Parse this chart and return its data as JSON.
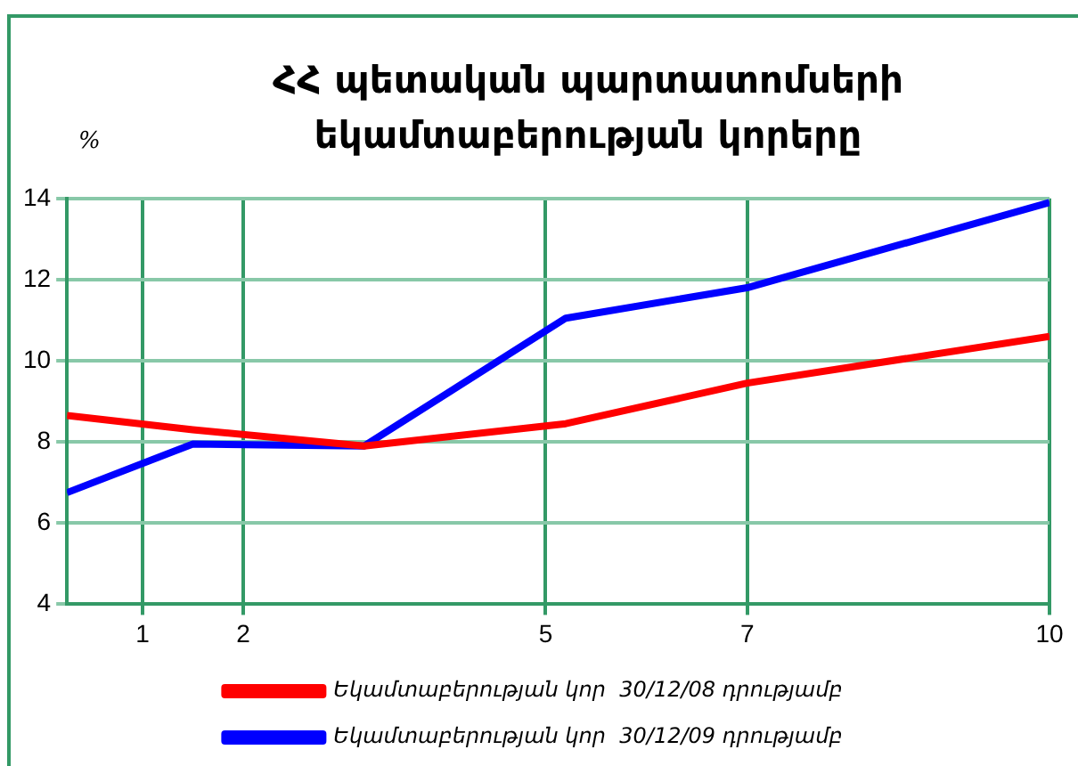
{
  "chart_data": {
    "type": "line",
    "title": "ՀՀ պետական պարտատոմսերի եկամտաբերության կորերը",
    "ylabel": "%",
    "x": [
      0.25,
      1.5,
      3.2,
      5.2,
      7,
      10
    ],
    "series": [
      {
        "name": "Եկամտաբերության կոր  30/12/08 դրությամբ",
        "color": "#ff0000",
        "values": [
          8.65,
          8.3,
          7.9,
          8.45,
          9.45,
          10.6
        ]
      },
      {
        "name": "Եկամտաբերության կոր  30/12/09 դրությամբ",
        "color": "#0000ff",
        "values": [
          6.75,
          7.95,
          7.9,
          11.05,
          11.8,
          13.9
        ]
      }
    ],
    "xlim": [
      0.25,
      10
    ],
    "xticks": [
      1,
      2,
      5,
      7,
      10
    ],
    "ylim": [
      4,
      14
    ],
    "yticks": [
      4,
      6,
      8,
      10,
      12,
      14
    ],
    "grid": true,
    "legend": "bottom",
    "marker": "none",
    "line_style": "solid"
  }
}
